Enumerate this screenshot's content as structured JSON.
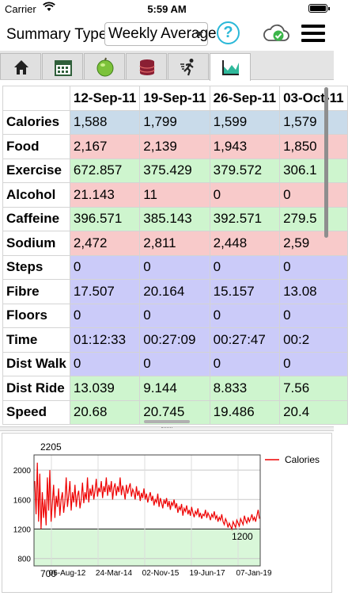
{
  "status_bar": {
    "carrier": "Carrier",
    "time": "5:59 AM"
  },
  "header": {
    "label": "Summary Type",
    "select_value": "Weekly Average",
    "help_symbol": "?"
  },
  "tabs": [
    {
      "icon": "home-icon"
    },
    {
      "icon": "calendar-icon"
    },
    {
      "icon": "apple-icon"
    },
    {
      "icon": "database-icon"
    },
    {
      "icon": "runner-icon"
    },
    {
      "icon": "chart-icon",
      "active": true
    }
  ],
  "table": {
    "columns": [
      "12-Sep-11",
      "19-Sep-11",
      "26-Sep-11",
      "03-Oct-11"
    ],
    "rows": [
      {
        "label": "Calories",
        "color": "blue",
        "values": [
          "1,588",
          "1,799",
          "1,599",
          "1,579"
        ]
      },
      {
        "label": "Food",
        "color": "red",
        "values": [
          "2,167",
          "2,139",
          "1,943",
          "1,850"
        ]
      },
      {
        "label": "Exercise",
        "color": "green",
        "values": [
          "672.857",
          "375.429",
          "379.572",
          "306.1"
        ]
      },
      {
        "label": "Alcohol",
        "color": "red",
        "values": [
          "21.143",
          "11",
          "0",
          "0"
        ]
      },
      {
        "label": "Caffeine",
        "color": "green",
        "values": [
          "396.571",
          "385.143",
          "392.571",
          "279.5"
        ]
      },
      {
        "label": "Sodium",
        "color": "red",
        "values": [
          "2,472",
          "2,811",
          "2,448",
          "2,59"
        ]
      },
      {
        "label": "Steps",
        "color": "purple",
        "values": [
          "0",
          "0",
          "0",
          "0"
        ]
      },
      {
        "label": "Fibre",
        "color": "purple",
        "values": [
          "17.507",
          "20.164",
          "15.157",
          "13.08"
        ]
      },
      {
        "label": "Floors",
        "color": "purple",
        "values": [
          "0",
          "0",
          "0",
          "0"
        ]
      },
      {
        "label": "Time",
        "color": "purple",
        "values": [
          "01:12:33",
          "00:27:09",
          "00:27:47",
          "00:2"
        ]
      },
      {
        "label": "Dist Walk",
        "color": "purple",
        "values": [
          "0",
          "0",
          "0",
          "0"
        ]
      },
      {
        "label": "Dist Ride",
        "color": "green",
        "values": [
          "13.039",
          "9.144",
          "8.833",
          "7.56"
        ]
      },
      {
        "label": "Speed",
        "color": "green",
        "values": [
          "20.68",
          "20.745",
          "19.486",
          "20.4"
        ]
      }
    ]
  },
  "colors": {
    "blue": "#c9dbea",
    "red": "#f8caca",
    "green": "#cef5ce",
    "purple": "#cbcbf9",
    "accent": "#2ab8d8",
    "line": "#ee0000"
  },
  "chart_data": {
    "type": "line",
    "series": [
      {
        "name": "Calories"
      }
    ],
    "x_ticks": [
      "06-Aug-12",
      "24-Mar-14",
      "02-Nov-15",
      "19-Jun-17",
      "07-Jan-19"
    ],
    "y_ticks": [
      800,
      1200,
      1600,
      2000
    ],
    "ylim": [
      700,
      2205
    ],
    "max_label": "2205",
    "min_label": "1200",
    "axis_min_label": "700",
    "target_band": [
      700,
      1200
    ],
    "legend_position": "top-right",
    "grid": true,
    "values": [
      1850,
      1400,
      2100,
      1300,
      1950,
      1200,
      1700,
      1350,
      1600,
      1250,
      1900,
      1450,
      2000,
      1300,
      1550,
      1800,
      1350,
      1650,
      1500,
      1750,
      1380,
      1600,
      1700,
      1420,
      1580,
      1900,
      1500,
      1650,
      1850,
      1450,
      1700,
      1560,
      1800,
      1500,
      1650,
      1720,
      1480,
      1600,
      1830,
      1550,
      1700,
      1600,
      1900,
      1560,
      1750,
      1650,
      1800,
      1600,
      1720,
      1880,
      1640,
      1760,
      1700,
      1850,
      1620,
      1780,
      1700,
      1900,
      1650,
      1800,
      1700,
      1850,
      1600,
      1760,
      1820,
      1650,
      1780,
      1700,
      1900,
      1660,
      1790,
      1720,
      1600,
      1800,
      1680,
      1760,
      1820,
      1640,
      1740,
      1700,
      1600,
      1780,
      1650,
      1720,
      1580,
      1690,
      1620,
      1750,
      1600,
      1680,
      1560,
      1640,
      1700,
      1580,
      1650,
      1520,
      1600,
      1560,
      1680,
      1500,
      1620,
      1560,
      1480,
      1600,
      1540,
      1620,
      1500,
      1580,
      1460,
      1560,
      1520,
      1600,
      1480,
      1550,
      1420,
      1500,
      1460,
      1540,
      1380,
      1480,
      1440,
      1520,
      1400,
      1460,
      1380,
      1500,
      1420,
      1360,
      1440,
      1400,
      1480,
      1360,
      1420,
      1340,
      1400,
      1380,
      1460,
      1350,
      1420,
      1380,
      1320,
      1400,
      1360,
      1440,
      1340,
      1380,
      1300,
      1360,
      1320,
      1400,
      1300,
      1260,
      1340,
      1300,
      1220,
      1280,
      1240,
      1200,
      1300,
      1260,
      1220,
      1320,
      1280,
      1240,
      1340,
      1300,
      1260,
      1380,
      1320,
      1280,
      1360,
      1300,
      1340,
      1400,
      1320,
      1360,
      1300,
      1380,
      1460,
      1340
    ]
  }
}
